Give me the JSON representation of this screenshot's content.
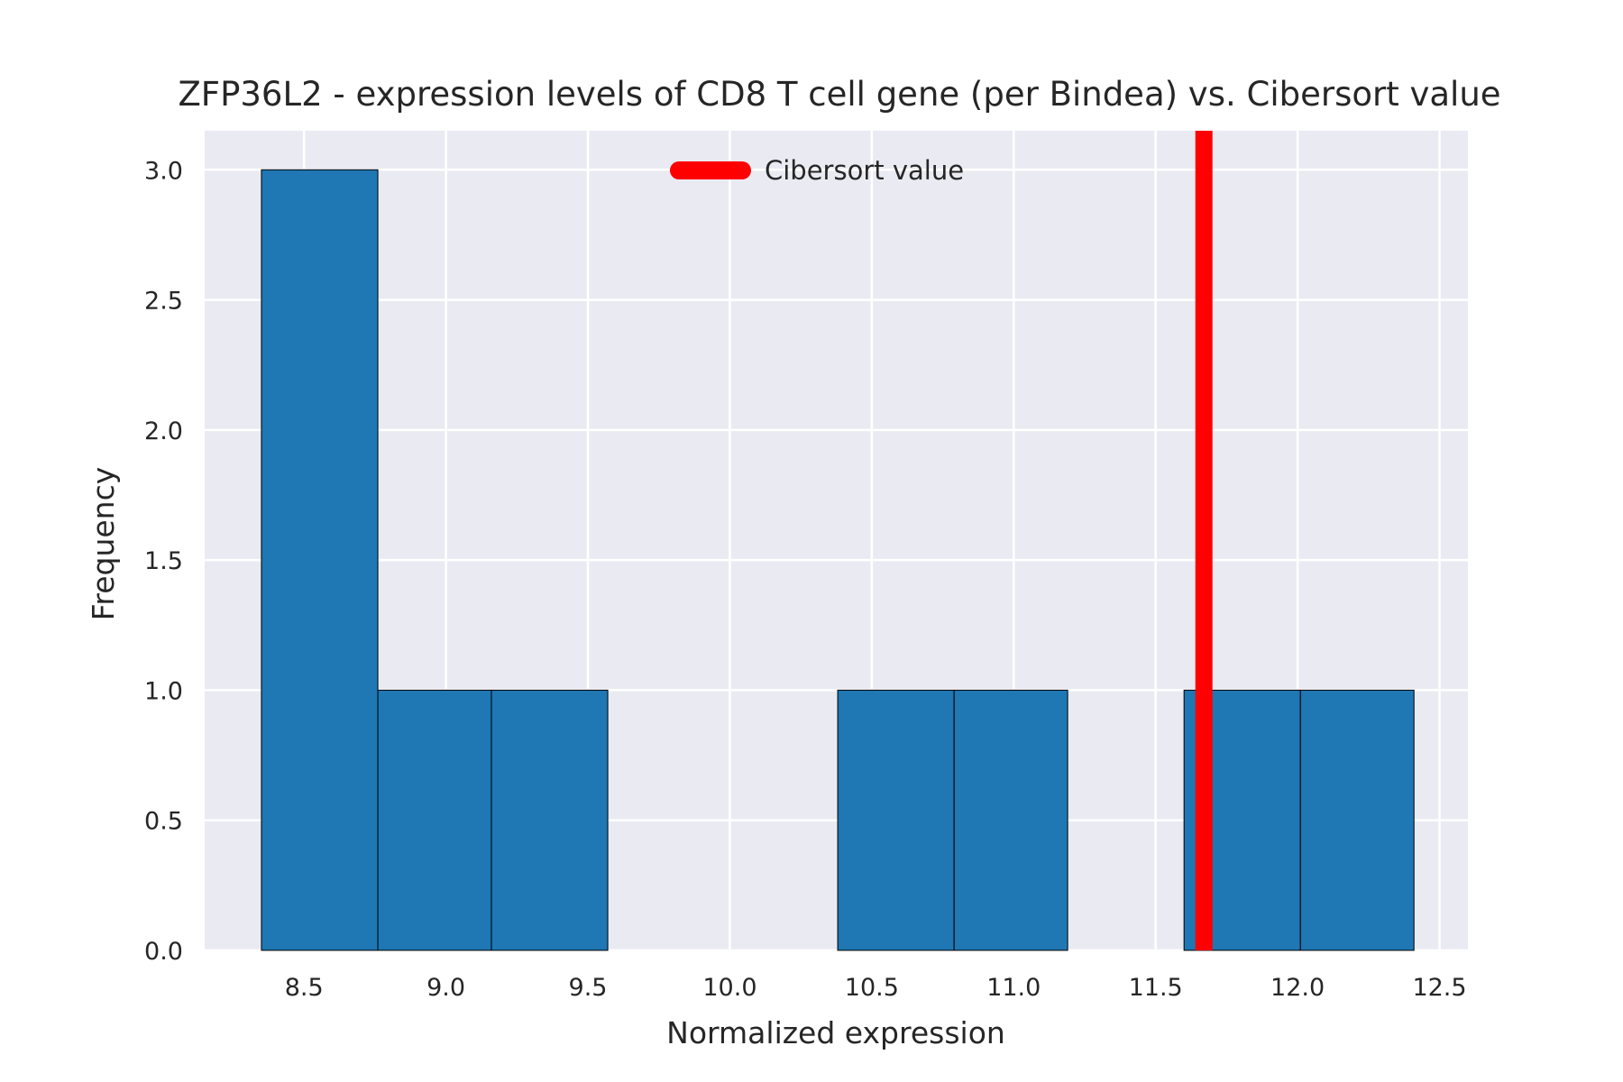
{
  "chart_data": {
    "type": "bar",
    "title": "ZFP36L2 - expression levels of CD8 T cell gene (per Bindea) vs. Cibersort value",
    "xlabel": "Normalized expression",
    "ylabel": "Frequency",
    "xlim": [
      8.15,
      12.6
    ],
    "ylim": [
      0,
      3.15
    ],
    "grid": true,
    "background_color": "#EAEAF2",
    "bar_color": "#1F77B4",
    "bar_edge_color": "#000000",
    "bins": [
      {
        "x0": 8.35,
        "x1": 8.76,
        "count": 3
      },
      {
        "x0": 8.76,
        "x1": 9.16,
        "count": 1
      },
      {
        "x0": 9.16,
        "x1": 9.57,
        "count": 1
      },
      {
        "x0": 9.57,
        "x1": 9.98,
        "count": 0
      },
      {
        "x0": 9.98,
        "x1": 10.38,
        "count": 0
      },
      {
        "x0": 10.38,
        "x1": 10.79,
        "count": 1
      },
      {
        "x0": 10.79,
        "x1": 11.19,
        "count": 1
      },
      {
        "x0": 11.19,
        "x1": 11.6,
        "count": 0
      },
      {
        "x0": 11.6,
        "x1": 12.01,
        "count": 1
      },
      {
        "x0": 12.01,
        "x1": 12.41,
        "count": 1
      }
    ],
    "x_ticks": [
      "8.5",
      "9.0",
      "9.5",
      "10.0",
      "10.5",
      "11.0",
      "11.5",
      "12.0",
      "12.5"
    ],
    "y_ticks": [
      "0.0",
      "0.5",
      "1.0",
      "1.5",
      "2.0",
      "2.5",
      "3.0"
    ],
    "reference_line": {
      "name": "Cibersort value",
      "x": 11.67,
      "color": "#FF0000"
    },
    "legend": {
      "placement": "top-center",
      "entries": [
        "Cibersort value"
      ]
    }
  }
}
